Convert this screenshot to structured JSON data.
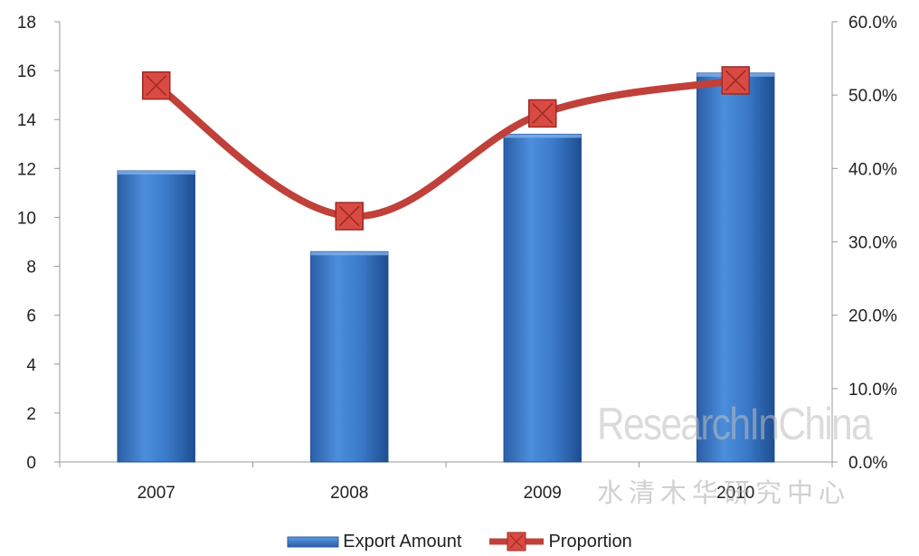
{
  "chart_data": {
    "type": "bar",
    "categories": [
      "2007",
      "2008",
      "2009",
      "2010"
    ],
    "series": [
      {
        "name": "Export Amount",
        "type": "bar",
        "axis": "left",
        "values": [
          11.9,
          8.6,
          13.4,
          15.9
        ]
      },
      {
        "name": "Proportion",
        "type": "line",
        "axis": "right",
        "values": [
          51.3,
          33.5,
          47.5,
          52.0
        ]
      }
    ],
    "y_left": {
      "min": 0,
      "max": 18,
      "step": 2,
      "tick_labels": [
        "0",
        "2",
        "4",
        "6",
        "8",
        "10",
        "12",
        "14",
        "16",
        "18"
      ]
    },
    "y_right": {
      "min": 0,
      "max": 60,
      "step": 10,
      "tick_labels": [
        "0.0%",
        "10.0%",
        "20.0%",
        "30.0%",
        "40.0%",
        "50.0%",
        "60.0%"
      ]
    },
    "grid": false,
    "legend_position": "bottom",
    "colors": {
      "bar": "#3f7fcf",
      "line": "#c0403a",
      "marker": "#d94a43"
    }
  },
  "legend": {
    "export_label": "Export Amount",
    "proportion_label": "Proportion"
  },
  "watermark": {
    "latin": "ResearchInChina",
    "chinese": "水清木华研究中心"
  }
}
